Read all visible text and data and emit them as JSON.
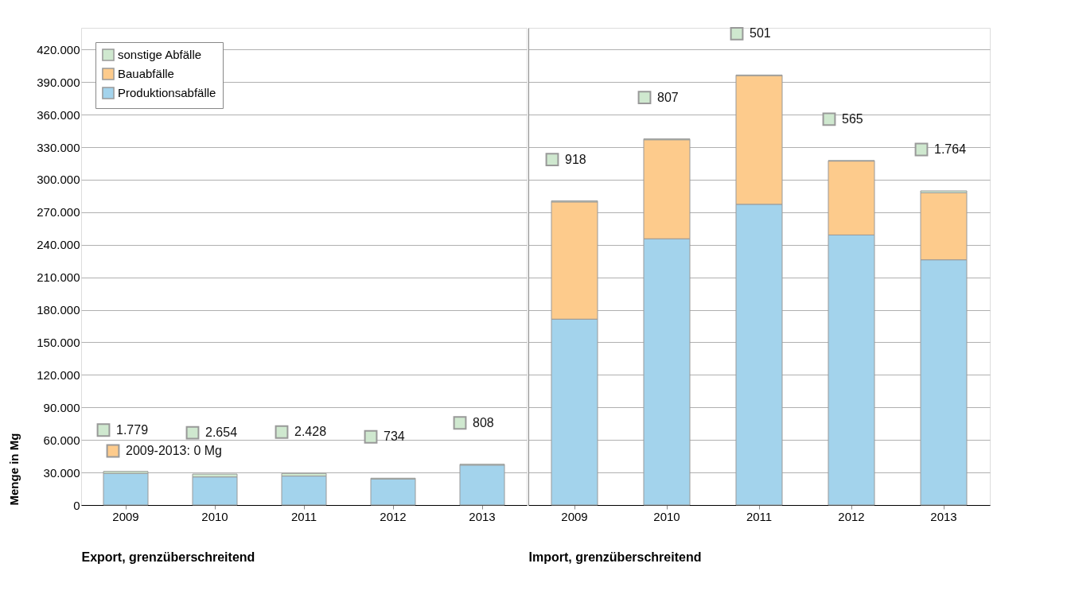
{
  "chart_data": [
    {
      "type": "bar",
      "stacked": true,
      "categories": [
        "2009",
        "2010",
        "2011",
        "2012",
        "2013"
      ],
      "xlabel": "Export, grenzüberschreitend",
      "ylabel": "Menge in Mg",
      "series": [
        {
          "name": "Produktionsabfälle",
          "color": "#a3d3ec",
          "values": [
            29200,
            25900,
            26700,
            24000,
            36800
          ]
        },
        {
          "name": "Bauabfälle",
          "color": "#fdcb8c",
          "values": [
            0,
            0,
            0,
            0,
            0
          ]
        },
        {
          "name": "sonstige Abfälle",
          "color": "#cfe8cf",
          "values": [
            1779,
            2654,
            2428,
            734,
            808
          ],
          "value_labels": [
            "1.779",
            "2.654",
            "2.428",
            "734",
            "808"
          ]
        }
      ],
      "annotations": [
        "2009-2013: 0 Mg"
      ],
      "ylim": [
        0,
        440000
      ],
      "yticks": [
        {
          "value": 0,
          "label": "0"
        },
        {
          "value": 30000,
          "label": "30.000"
        },
        {
          "value": 60000,
          "label": "60.000"
        },
        {
          "value": 90000,
          "label": "90.000"
        },
        {
          "value": 120000,
          "label": "120.000"
        },
        {
          "value": 150000,
          "label": "150.000"
        },
        {
          "value": 180000,
          "label": "180.000"
        },
        {
          "value": 210000,
          "label": "210.000"
        },
        {
          "value": 240000,
          "label": "240.000"
        },
        {
          "value": 270000,
          "label": "270.000"
        },
        {
          "value": 300000,
          "label": "300.000"
        },
        {
          "value": 330000,
          "label": "330.000"
        },
        {
          "value": 360000,
          "label": "360.000"
        },
        {
          "value": 390000,
          "label": "390.000"
        },
        {
          "value": 420000,
          "label": "420.000"
        }
      ],
      "grid": "y",
      "legend": "top left"
    },
    {
      "type": "bar",
      "stacked": true,
      "categories": [
        "2009",
        "2010",
        "2011",
        "2012",
        "2013"
      ],
      "xlabel": "Import, grenzüberschreitend",
      "series": [
        {
          "color": "#a3d3ec",
          "values": [
            171400,
            245500,
            277300,
            249000,
            226100
          ]
        },
        {
          "color": "#fdcb8c",
          "values": [
            108100,
            91300,
            118700,
            68100,
            61800
          ]
        },
        {
          "color": "#cfe8cf",
          "values": [
            918,
            807,
            501,
            565,
            1764
          ],
          "value_labels": [
            "918",
            "807",
            "501",
            "565",
            "1.764"
          ]
        }
      ],
      "ylim": [
        0,
        440000
      ],
      "yticks": [
        {
          "value": 0,
          "label": null
        },
        {
          "value": 30000,
          "label": null
        },
        {
          "value": 60000,
          "label": null
        },
        {
          "value": 90000,
          "label": null
        },
        {
          "value": 120000,
          "label": null
        },
        {
          "value": 150000,
          "label": null
        },
        {
          "value": 180000,
          "label": null
        },
        {
          "value": 210000,
          "label": null
        },
        {
          "value": 240000,
          "label": null
        },
        {
          "value": 270000,
          "label": null
        },
        {
          "value": 300000,
          "label": null
        },
        {
          "value": 330000,
          "label": null
        },
        {
          "value": 360000,
          "label": null
        },
        {
          "value": 390000,
          "label": null
        },
        {
          "value": 420000,
          "label": null
        }
      ],
      "grid": "y",
      "tick_labels": "x"
    }
  ]
}
